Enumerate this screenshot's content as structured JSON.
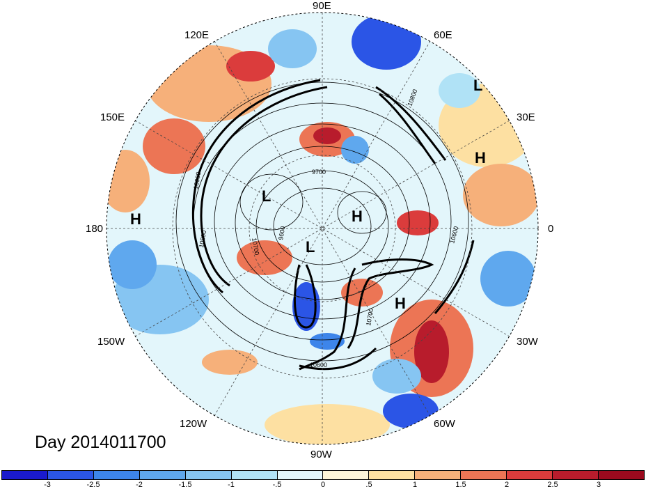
{
  "day_label": "Day 2014011700",
  "longitude_labels": {
    "e90": "90E",
    "e60": "60E",
    "e30": "30E",
    "zero": "0",
    "w30": "30W",
    "w60": "60W",
    "w90": "90W",
    "w120": "120W",
    "w150": "150W",
    "d180": "180",
    "e150": "150E",
    "e120": "120E"
  },
  "pressure_marks": [
    {
      "label": "L",
      "name": "low-east-atlantic"
    },
    {
      "label": "H",
      "name": "high-europe"
    },
    {
      "label": "H",
      "name": "high-pacific"
    },
    {
      "label": "L",
      "name": "low-siberia"
    },
    {
      "label": "H",
      "name": "high-arctic"
    },
    {
      "label": "L",
      "name": "low-pole"
    },
    {
      "label": "H",
      "name": "high-atlantic"
    }
  ],
  "contour_labels": [
    "10900",
    "10800",
    "10700",
    "10600",
    "9600",
    "9700",
    "10800",
    "10600",
    "10700"
  ],
  "colorbar": {
    "ticks": [
      "-3",
      "-2.5",
      "-2",
      "-1.5",
      "-1",
      "-.5",
      "0",
      ".5",
      "1",
      "1.5",
      "2",
      "2.5",
      "3"
    ],
    "colors": [
      "#1a1acd",
      "#2b55e6",
      "#3d85ea",
      "#5fa8ee",
      "#86c5f2",
      "#b0e2f6",
      "#e3f6fb",
      "#fdf5d8",
      "#fde0a2",
      "#f6b07a",
      "#ec7555",
      "#db3c3c",
      "#b81c2c",
      "#9b0a1e"
    ]
  }
}
